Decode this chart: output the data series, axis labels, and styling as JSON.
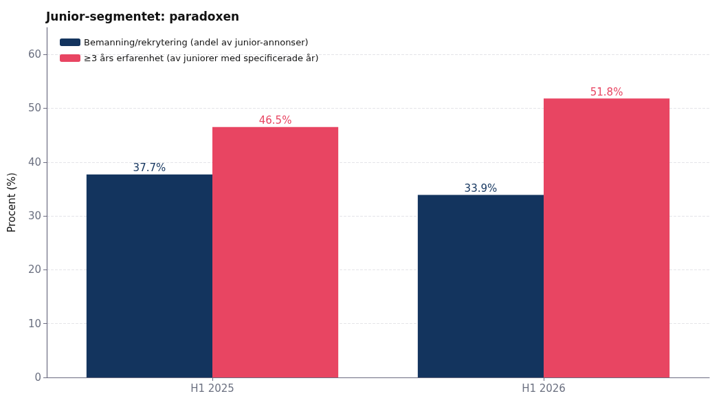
{
  "chart_data": {
    "type": "bar",
    "title": "Junior-segmentet: paradoxen",
    "ylabel": "Procent (%)",
    "categories": [
      "H1 2025",
      "H1 2026"
    ],
    "series": [
      {
        "name": "Bemanning/rekrytering (andel av junior-annonser)",
        "color": "#13345e",
        "values": [
          37.7,
          33.9
        ],
        "value_labels": [
          "37.7%",
          "33.9%"
        ]
      },
      {
        "name": "≥3 års erfarenhet (av juniorer med specificerade år)",
        "color": "#e84562",
        "values": [
          46.5,
          51.8
        ],
        "value_labels": [
          "46.5%",
          "51.8%"
        ]
      }
    ],
    "ylim": [
      0,
      65
    ],
    "yticks": [
      0,
      10,
      20,
      30,
      40,
      50,
      60
    ],
    "grid": "y",
    "legend": "top left"
  }
}
